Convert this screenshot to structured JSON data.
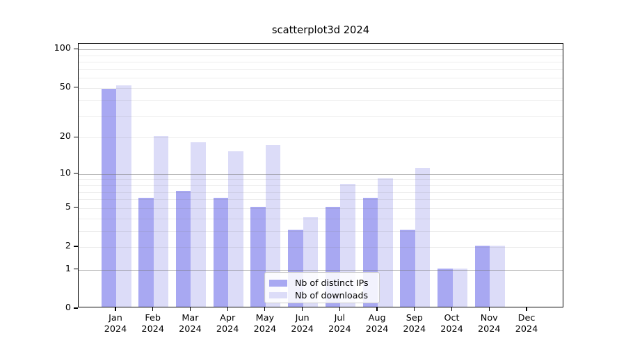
{
  "chart_data": {
    "type": "bar",
    "title": "scatterplot3d 2024",
    "categories": [
      "Jan 2024",
      "Feb 2024",
      "Mar 2024",
      "Apr 2024",
      "May 2024",
      "Jun 2024",
      "Jul 2024",
      "Aug 2024",
      "Sep 2024",
      "Oct 2024",
      "Nov 2024",
      "Dec 2024"
    ],
    "series": [
      {
        "name": "Nb of distinct IPs",
        "color": "#a8a8f2",
        "values": [
          48,
          6,
          7,
          6,
          5,
          3,
          5,
          6,
          3,
          1,
          2,
          0
        ]
      },
      {
        "name": "Nb of downloads",
        "color": "#dcdcf8",
        "values": [
          51,
          20,
          18,
          15,
          17,
          4,
          8,
          9,
          11,
          1,
          2,
          0
        ]
      }
    ],
    "xlabel": "",
    "ylabel": "",
    "y_scale": "log1p",
    "ylim": [
      0,
      130
    ],
    "y_ticks": [
      0,
      1,
      2,
      5,
      10,
      20,
      50,
      100
    ],
    "y_major_gridlines": [
      1,
      10,
      100
    ],
    "y_minor_gridlines": [
      2,
      3,
      4,
      5,
      6,
      7,
      8,
      9,
      20,
      30,
      40,
      50,
      60,
      70,
      80,
      90
    ],
    "grid": "on, drawn over bars",
    "legend_position": "lower center"
  }
}
